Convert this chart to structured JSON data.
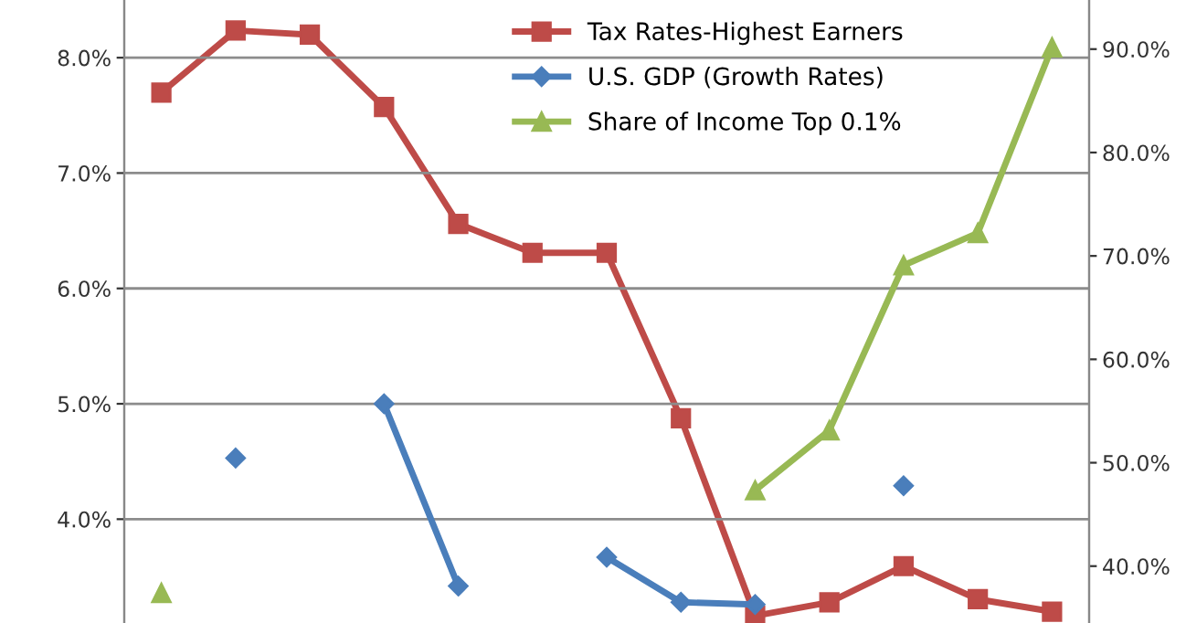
{
  "chart_data": {
    "type": "line",
    "categories": [
      null,
      null,
      null,
      null,
      null,
      null,
      null,
      null,
      null,
      null,
      null,
      null,
      null
    ],
    "series": [
      {
        "name": "Tax Rates-Highest Earners",
        "color": "#be4b48",
        "marker": "square",
        "axis": "y2",
        "values": [
          85.8,
          91.8,
          91.4,
          84.4,
          73.1,
          70.3,
          70.3,
          54.3,
          35.2,
          36.5,
          40.0,
          36.8,
          35.6
        ]
      },
      {
        "name": "U.S. GDP (Growth Rates)",
        "color": "#4a7ebb",
        "marker": "diamond",
        "values": [
          null,
          4.53,
          null,
          5.0,
          3.42,
          null,
          3.67,
          3.28,
          3.26,
          null,
          4.29,
          null,
          null
        ]
      },
      {
        "name": "Share of Income Top 0.1%",
        "color": "#98b954",
        "marker": "triangle",
        "values": [
          3.36,
          null,
          null,
          null,
          null,
          null,
          null,
          null,
          4.25,
          4.77,
          6.2,
          6.48,
          8.09
        ]
      }
    ],
    "ylim": [
      3.1,
      8.5
    ],
    "yticks": [
      {
        "value": 4,
        "label": "4.0%"
      },
      {
        "value": 5,
        "label": "5.0%"
      },
      {
        "value": 6,
        "label": "6.0%"
      },
      {
        "value": 7,
        "label": "7.0%"
      },
      {
        "value": 8,
        "label": "8.0%"
      }
    ],
    "y2lim": [
      34.5,
      94.75
    ],
    "y2ticks": [
      {
        "value": 40,
        "label": "40.0%"
      },
      {
        "value": 50,
        "label": "50.0%"
      },
      {
        "value": 60,
        "label": "60.0%"
      },
      {
        "value": 70,
        "label": "70.0%"
      },
      {
        "value": 80,
        "label": "80.0%"
      },
      {
        "value": 90,
        "label": "90.0%"
      }
    ],
    "grid": "y",
    "legend": "top right",
    "line_style": "solid"
  }
}
